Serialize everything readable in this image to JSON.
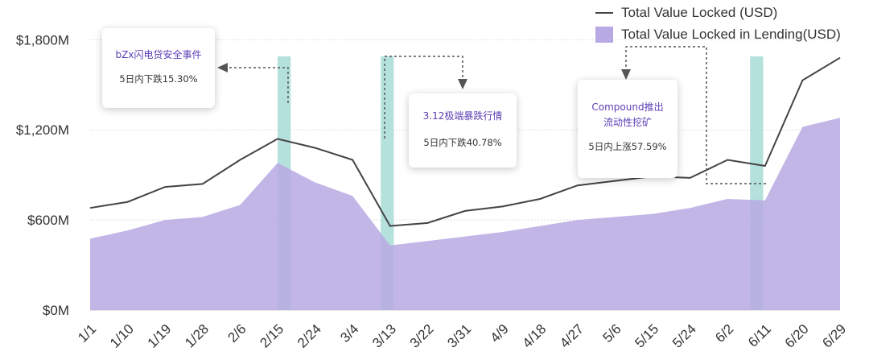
{
  "chart_data": {
    "type": "area",
    "x": [
      "1/1",
      "1/10",
      "1/19",
      "1/28",
      "2/6",
      "2/15",
      "2/24",
      "3/4",
      "3/13",
      "3/22",
      "3/31",
      "4/9",
      "4/18",
      "4/27",
      "5/6",
      "5/15",
      "5/24",
      "6/2",
      "6/11",
      "6/20",
      "6/29"
    ],
    "series": [
      {
        "name": "Total Value Locked (USD)",
        "type": "line",
        "color": "#444444",
        "values": [
          680,
          720,
          820,
          840,
          1000,
          1140,
          1080,
          1000,
          560,
          580,
          660,
          690,
          740,
          830,
          860,
          890,
          880,
          1000,
          960,
          1530,
          1680
        ]
      },
      {
        "name": "Total Value Locked in Lending(USD)",
        "type": "area",
        "color": "#b7a9e3",
        "values": [
          475,
          530,
          600,
          620,
          700,
          980,
          850,
          760,
          430,
          460,
          490,
          520,
          560,
          600,
          620,
          640,
          680,
          740,
          730,
          1220,
          1280
        ]
      }
    ],
    "yticks": [
      "$0M",
      "$600M",
      "$1,200M",
      "$1,800M"
    ],
    "ytick_values": [
      0,
      600,
      1200,
      1800
    ],
    "ylim": [
      0,
      1850
    ],
    "grid": true,
    "legend_position": "top-right",
    "highlights": [
      {
        "start": 5.0,
        "end": 5.35,
        "color": "#a8dcd6"
      },
      {
        "start": 7.75,
        "end": 8.1,
        "color": "#a8dcd6"
      },
      {
        "start": 17.6,
        "end": 17.95,
        "color": "#a8dcd6"
      }
    ],
    "annotations": [
      {
        "title": "bZx闪电贷安全事件",
        "desc": "5日内下跌15.30%"
      },
      {
        "title": "3.12极端暴跌行情",
        "desc": "5日内下跌40.78%"
      },
      {
        "title": "Compound推出\n流动性挖矿",
        "desc": "5日内上涨57.59%"
      }
    ]
  }
}
